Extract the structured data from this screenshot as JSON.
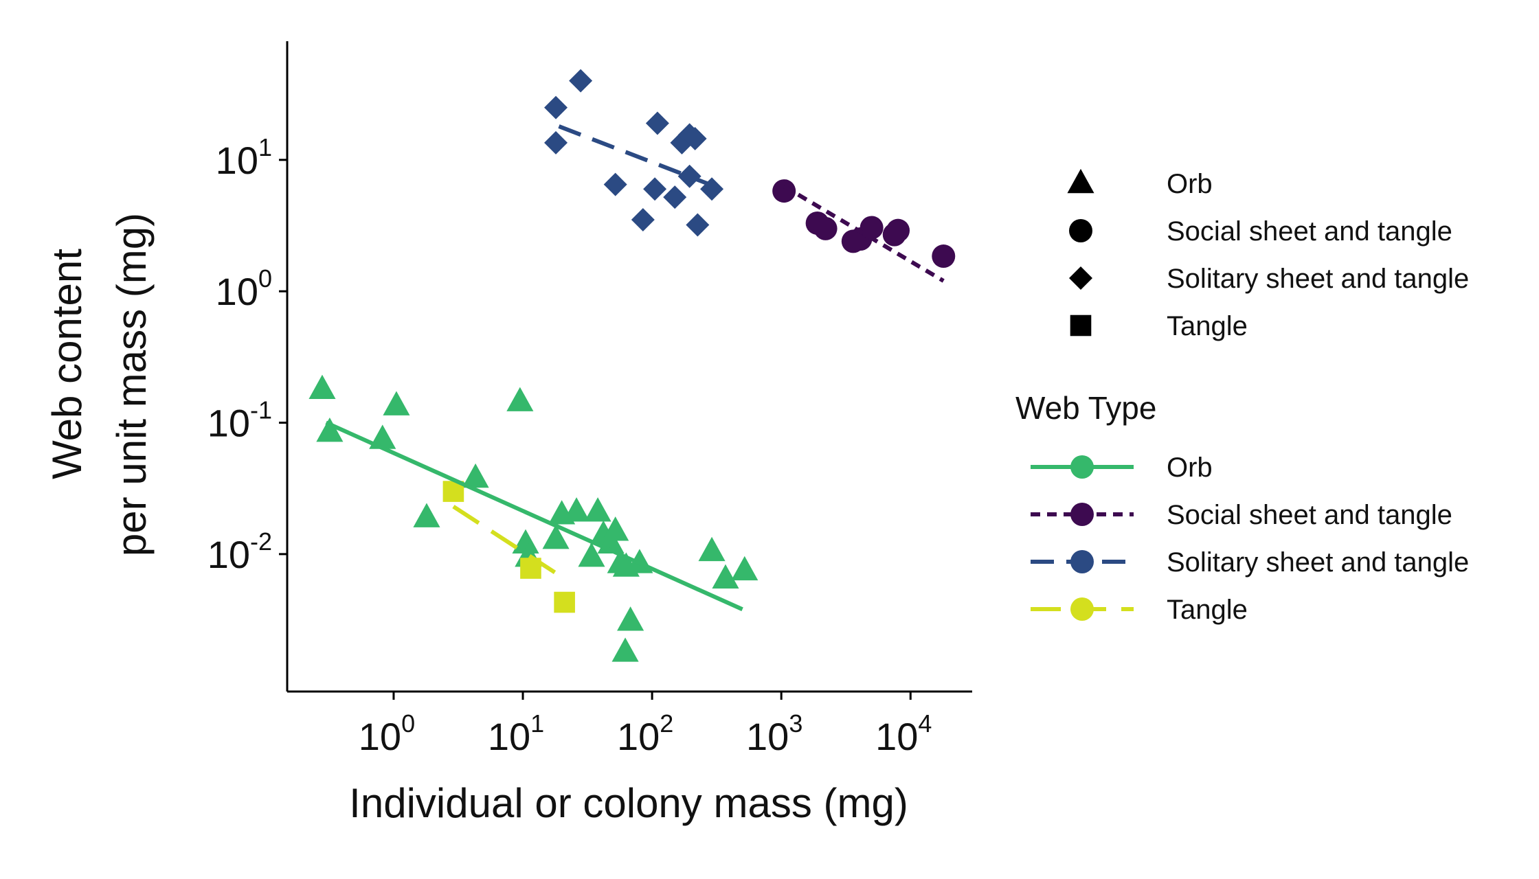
{
  "chart_data": {
    "type": "scatter",
    "title": "",
    "xlabel": "Individual or colony mass (mg)",
    "ylabel_lines": [
      "Web content",
      "per unit mass (mg)"
    ],
    "xscale": "log",
    "yscale": "log",
    "xlim": [
      0.15,
      30000
    ],
    "ylim": [
      0.0009,
      80
    ],
    "grid": false,
    "x_ticks": [
      {
        "value": 1,
        "base": "10",
        "exp": "0"
      },
      {
        "value": 10,
        "base": "10",
        "exp": "1"
      },
      {
        "value": 100,
        "base": "10",
        "exp": "2"
      },
      {
        "value": 1000,
        "base": "10",
        "exp": "3"
      },
      {
        "value": 10000,
        "base": "10",
        "exp": "4"
      }
    ],
    "y_ticks": [
      {
        "value": 0.01,
        "base": "10",
        "exp": "-2"
      },
      {
        "value": 0.1,
        "base": "10",
        "exp": "-1"
      },
      {
        "value": 1,
        "base": "10",
        "exp": "0"
      },
      {
        "value": 10,
        "base": "10",
        "exp": "1"
      }
    ],
    "legend_placement": "right",
    "shape_legend": {
      "items": [
        {
          "label": "Orb",
          "shape": "triangle"
        },
        {
          "label": "Social sheet and tangle",
          "shape": "circle"
        },
        {
          "label": "Solitary sheet and tangle",
          "shape": "diamond"
        },
        {
          "label": "Tangle",
          "shape": "square"
        }
      ]
    },
    "line_legend": {
      "title": "Web Type",
      "items": [
        {
          "label": "Orb",
          "color": "#35b86b",
          "dash": "solid"
        },
        {
          "label": "Social sheet and tangle",
          "color": "#3d0a50",
          "dash": "dotted"
        },
        {
          "label": "Solitary sheet and tangle",
          "color": "#2b4a83",
          "dash": "dashed"
        },
        {
          "label": "Tangle",
          "color": "#d4df1e",
          "dash": "longdash"
        }
      ]
    },
    "series": [
      {
        "name": "Orb",
        "color": "#35b86b",
        "shape": "triangle",
        "dash": "solid",
        "points": [
          {
            "x": 0.28,
            "y": 0.18
          },
          {
            "x": 0.32,
            "y": 0.085
          },
          {
            "x": 1.05,
            "y": 0.135
          },
          {
            "x": 0.82,
            "y": 0.075
          },
          {
            "x": 9.5,
            "y": 0.145
          },
          {
            "x": 1.8,
            "y": 0.019
          },
          {
            "x": 4.3,
            "y": 0.038
          },
          {
            "x": 10.5,
            "y": 0.012
          },
          {
            "x": 11,
            "y": 0.0095
          },
          {
            "x": 18,
            "y": 0.013
          },
          {
            "x": 20,
            "y": 0.02
          },
          {
            "x": 26,
            "y": 0.021
          },
          {
            "x": 34,
            "y": 0.0095
          },
          {
            "x": 38,
            "y": 0.021
          },
          {
            "x": 42,
            "y": 0.014
          },
          {
            "x": 48,
            "y": 0.012
          },
          {
            "x": 52,
            "y": 0.015
          },
          {
            "x": 57,
            "y": 0.0085
          },
          {
            "x": 63,
            "y": 0.008
          },
          {
            "x": 80,
            "y": 0.0085
          },
          {
            "x": 62,
            "y": 0.0018
          },
          {
            "x": 68,
            "y": 0.0031
          },
          {
            "x": 290,
            "y": 0.0105
          },
          {
            "x": 370,
            "y": 0.0065
          },
          {
            "x": 520,
            "y": 0.0075
          }
        ],
        "fit": [
          {
            "x": 0.3,
            "y": 0.1
          },
          {
            "x": 500,
            "y": 0.0038
          }
        ]
      },
      {
        "name": "Social sheet and tangle",
        "color": "#3d0a50",
        "shape": "circle",
        "dash": "dotted",
        "points": [
          {
            "x": 1050,
            "y": 5.8
          },
          {
            "x": 1900,
            "y": 3.3
          },
          {
            "x": 2200,
            "y": 3.0
          },
          {
            "x": 3600,
            "y": 2.4
          },
          {
            "x": 4100,
            "y": 2.5
          },
          {
            "x": 5000,
            "y": 3.05
          },
          {
            "x": 7500,
            "y": 2.7
          },
          {
            "x": 8000,
            "y": 2.9
          },
          {
            "x": 18000,
            "y": 1.85
          }
        ],
        "fit": [
          {
            "x": 1050,
            "y": 6.3
          },
          {
            "x": 18000,
            "y": 1.2
          }
        ]
      },
      {
        "name": "Solitary sheet and tangle",
        "color": "#2b4a83",
        "shape": "diamond",
        "dash": "dashed",
        "points": [
          {
            "x": 18,
            "y": 25
          },
          {
            "x": 18,
            "y": 13.5
          },
          {
            "x": 28,
            "y": 40
          },
          {
            "x": 52,
            "y": 6.5
          },
          {
            "x": 85,
            "y": 3.5
          },
          {
            "x": 105,
            "y": 6.0
          },
          {
            "x": 110,
            "y": 19
          },
          {
            "x": 150,
            "y": 5.2
          },
          {
            "x": 170,
            "y": 13.5
          },
          {
            "x": 195,
            "y": 15.5
          },
          {
            "x": 215,
            "y": 14.5
          },
          {
            "x": 195,
            "y": 7.5
          },
          {
            "x": 225,
            "y": 3.2
          },
          {
            "x": 290,
            "y": 6.0
          }
        ],
        "fit": [
          {
            "x": 19,
            "y": 18
          },
          {
            "x": 280,
            "y": 6.5
          }
        ]
      },
      {
        "name": "Tangle",
        "color": "#d4df1e",
        "shape": "square",
        "dash": "longdash",
        "points": [
          {
            "x": 2.9,
            "y": 0.03
          },
          {
            "x": 11.5,
            "y": 0.0078
          },
          {
            "x": 21,
            "y": 0.0043
          }
        ],
        "fit": [
          {
            "x": 2.9,
            "y": 0.023
          },
          {
            "x": 21,
            "y": 0.0065
          }
        ]
      }
    ]
  }
}
